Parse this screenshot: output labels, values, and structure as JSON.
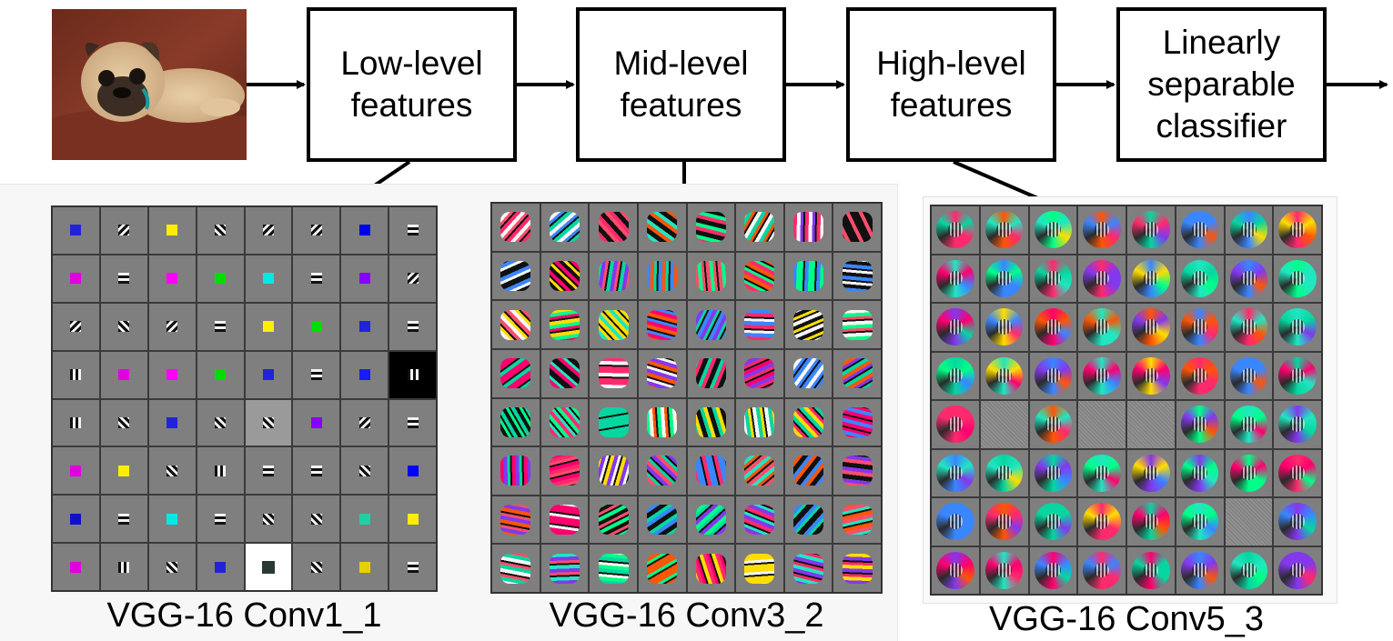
{
  "input_image": {
    "name": "pug-photo",
    "description_hidden": true
  },
  "stages": [
    {
      "label": "Low-level\nfeatures"
    },
    {
      "label": "Mid-level\nfeatures"
    },
    {
      "label": "High-level\nfeatures"
    },
    {
      "label": "Linearly\nseparable\nclassifier"
    }
  ],
  "panels": [
    {
      "caption": "VGG-16 Conv1_1"
    },
    {
      "caption": "VGG-16 Conv3_2"
    },
    {
      "caption": "VGG-16 Conv5_3"
    }
  ],
  "colors": {
    "conv1_solid": [
      "#e8d000",
      "#ff0000",
      "#e000e0",
      "#ff2020",
      "#2222dd",
      "#1010c8",
      "#ff00ff",
      "#0000ff",
      "#e0e000",
      "#20d0a0",
      "#1a1aff",
      "#0000ee",
      "#ff00ff",
      "#ffee00",
      "#ee2020",
      "#00dd00",
      "#cccc00",
      "#8800ff",
      "#00e8e8"
    ],
    "mid_palette": [
      "#ff2a6d",
      "#21e6c1",
      "#ffdd00",
      "#3a86ff",
      "#8338ec",
      "#06d6a0",
      "#ff006e",
      "#fb5607",
      "#00ff88",
      "#ff4d6d",
      "#111111",
      "#f5f5f5"
    ],
    "noise": "#8c8c8c"
  }
}
